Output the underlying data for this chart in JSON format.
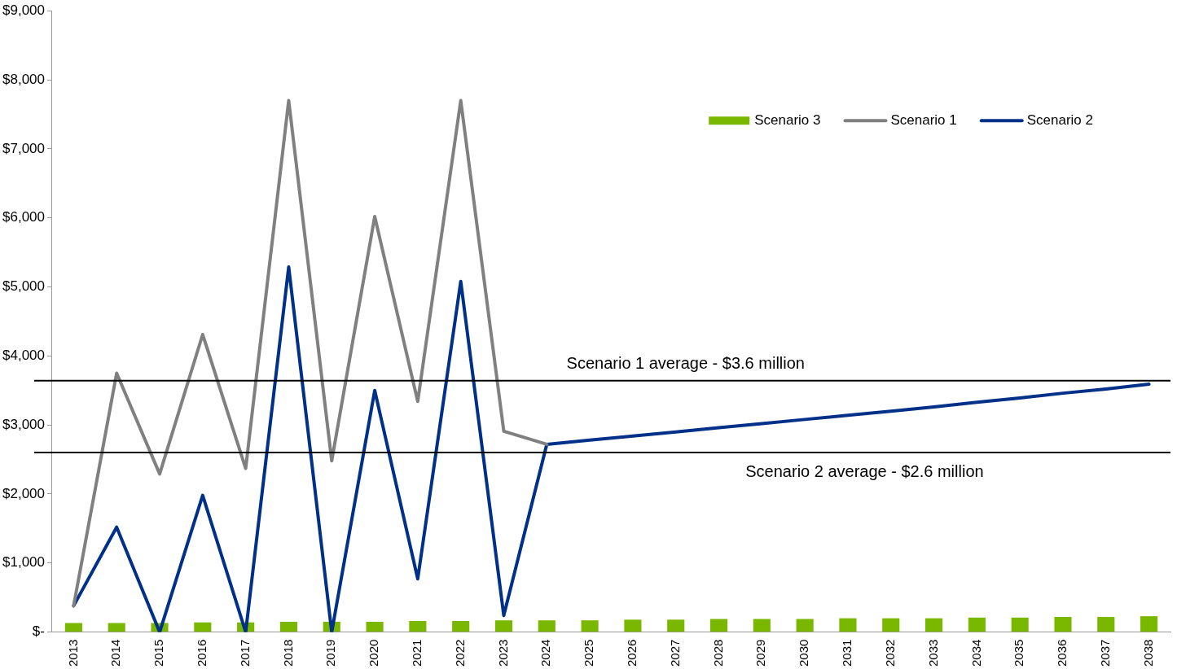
{
  "chart_data": {
    "type": "bar",
    "categories": [
      "2013",
      "2014",
      "2015",
      "2016",
      "2017",
      "2018",
      "2019",
      "2020",
      "2021",
      "2022",
      "2023",
      "2024",
      "2025",
      "2026",
      "2027",
      "2028",
      "2029",
      "2030",
      "2031",
      "2032",
      "2033",
      "2034",
      "2035",
      "2036",
      "2037",
      "2038"
    ],
    "series": [
      {
        "name": "Scenario 3",
        "color": "#7ab800",
        "values": [
          130,
          130,
          130,
          140,
          140,
          150,
          150,
          150,
          160,
          160,
          170,
          170,
          170,
          180,
          180,
          190,
          190,
          190,
          200,
          200,
          200,
          210,
          210,
          220,
          220,
          230
        ]
      },
      {
        "name": "Scenario 1",
        "type": "line",
        "color": "#808080",
        "values": [
          380,
          3750,
          2290,
          4310,
          2370,
          7700,
          2480,
          6020,
          3340,
          7700,
          2910,
          2720,
          null,
          null,
          null,
          null,
          null,
          null,
          null,
          null,
          null,
          null,
          null,
          null,
          null,
          null
        ]
      },
      {
        "name": "Scenario 2",
        "type": "line",
        "color": "#003087",
        "values": [
          380,
          1520,
          0,
          1980,
          0,
          5290,
          0,
          3500,
          770,
          5080,
          240,
          2720,
          2780,
          2840,
          2900,
          2960,
          3020,
          3080,
          3140,
          3200,
          3260,
          3330,
          3390,
          3460,
          3520,
          3590
        ]
      }
    ],
    "ylim": [
      0,
      9000
    ],
    "yticks": [
      {
        "value": 0,
        "label": "$-"
      },
      {
        "value": 1000,
        "label": "$1,000"
      },
      {
        "value": 2000,
        "label": "$2,000"
      },
      {
        "value": 3000,
        "label": "$3,000"
      },
      {
        "value": 4000,
        "label": "$4,000"
      },
      {
        "value": 5000,
        "label": "$5,000"
      },
      {
        "value": 6000,
        "label": "$6,000"
      },
      {
        "value": 7000,
        "label": "$7,000"
      },
      {
        "value": 8000,
        "label": "$8,000"
      },
      {
        "value": 9000,
        "label": "$9,000"
      }
    ],
    "ref_lines": [
      {
        "axis": "y",
        "value": 3640,
        "label": "Scenario 1 average - $3.6 million",
        "color": "#000000"
      },
      {
        "axis": "y",
        "value": 2600,
        "label": "Scenario 2 average - $2.6 million",
        "color": "#000000"
      }
    ],
    "grid": false,
    "legend": "top right",
    "marker": "none",
    "line_style": "solid"
  }
}
